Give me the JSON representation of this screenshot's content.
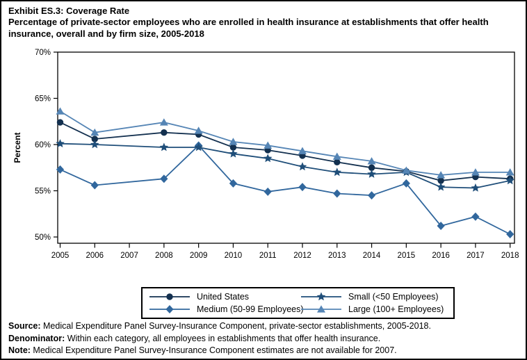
{
  "title": {
    "line1": "Exhibit ES.3: Coverage Rate",
    "line2": "Percentage of private-sector employees who are enrolled in health insurance at establishments that offer health insurance, overall and by firm size, 2005-2018"
  },
  "chart_data": {
    "type": "line",
    "x": [
      2005,
      2006,
      2007,
      2008,
      2009,
      2010,
      2011,
      2012,
      2013,
      2014,
      2015,
      2016,
      2017,
      2018
    ],
    "ylabel": "Percent",
    "ylim": [
      49.3,
      70
    ],
    "yticks": [
      50,
      55,
      60,
      65,
      70
    ],
    "ytick_labels": [
      "50%",
      "55%",
      "60%",
      "65%",
      "70%"
    ],
    "grid": false,
    "legend_position": "bottom",
    "missing_data_note": "no estimates for 2007",
    "series": [
      {
        "key": "us",
        "name": "United States",
        "marker": "circle",
        "color": "#13304f",
        "values": [
          62.4,
          60.6,
          null,
          61.3,
          61.1,
          59.7,
          59.4,
          58.8,
          58.1,
          57.5,
          57.1,
          56.1,
          56.5,
          56.3
        ]
      },
      {
        "key": "medium",
        "name": "Medium (50-99 Employees)",
        "marker": "diamond",
        "color": "#31679d",
        "values": [
          57.3,
          55.6,
          null,
          56.3,
          59.9,
          55.8,
          54.9,
          55.4,
          54.7,
          54.5,
          55.8,
          51.2,
          52.2,
          50.3
        ]
      },
      {
        "key": "small",
        "name": "Small (<50 Employees)",
        "marker": "star",
        "color": "#1f4e79",
        "values": [
          60.1,
          60.0,
          null,
          59.7,
          59.7,
          59.0,
          58.5,
          57.6,
          57.0,
          56.8,
          57.0,
          55.4,
          55.3,
          56.1
        ]
      },
      {
        "key": "large",
        "name": "Large (100+ Employees)",
        "marker": "triangle",
        "color": "#5585b5",
        "values": [
          63.6,
          61.3,
          null,
          62.4,
          61.5,
          60.3,
          59.9,
          59.3,
          58.7,
          58.2,
          57.2,
          56.7,
          57.0,
          57.0
        ]
      }
    ]
  },
  "footer": {
    "source_label": "Source:",
    "source_text": " Medical Expenditure Panel Survey-Insurance Component, private-sector establishments, 2005-2018.",
    "denominator_label": "Denominator:",
    "denominator_text": " Within each category, all employees in establishments that offer health insurance.",
    "note_label": "Note:",
    "note_text": " Medical Expenditure Panel Survey-Insurance Component estimates are not available for 2007."
  }
}
